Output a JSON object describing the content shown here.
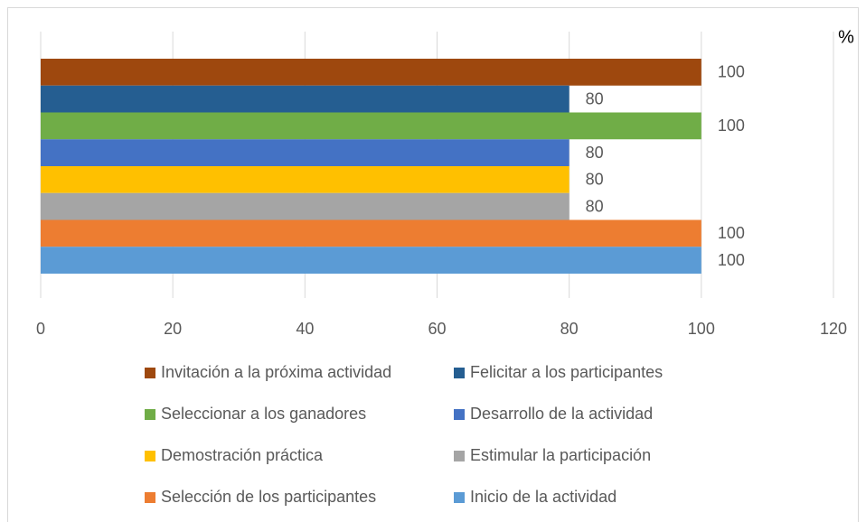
{
  "chart_data": {
    "type": "bar",
    "orientation": "horizontal",
    "value_axis_label": "%",
    "categories": [
      null
    ],
    "series": [
      {
        "name": "Invitación a la próxima actividad",
        "color": "#9e480e",
        "values": [
          100
        ]
      },
      {
        "name": "Felicitar a los participantes",
        "color": "#255e91",
        "values": [
          80
        ]
      },
      {
        "name": "Seleccionar a los ganadores",
        "color": "#70ad47",
        "values": [
          100
        ]
      },
      {
        "name": "Desarrollo de la actividad",
        "color": "#4472c4",
        "values": [
          80
        ]
      },
      {
        "name": "Demostración práctica",
        "color": "#ffc000",
        "values": [
          80
        ]
      },
      {
        "name": "Estimular la participación",
        "color": "#a5a5a5",
        "values": [
          80
        ]
      },
      {
        "name": "Selección de los participantes",
        "color": "#ed7d31",
        "values": [
          100
        ]
      },
      {
        "name": "Inicio de la actividad",
        "color": "#5b9bd5",
        "values": [
          100
        ]
      }
    ],
    "xlim": [
      0,
      120
    ],
    "xticks": [
      0,
      20,
      40,
      60,
      80,
      100,
      120
    ],
    "grid": true,
    "data_labels": true,
    "legend": "bottom"
  }
}
